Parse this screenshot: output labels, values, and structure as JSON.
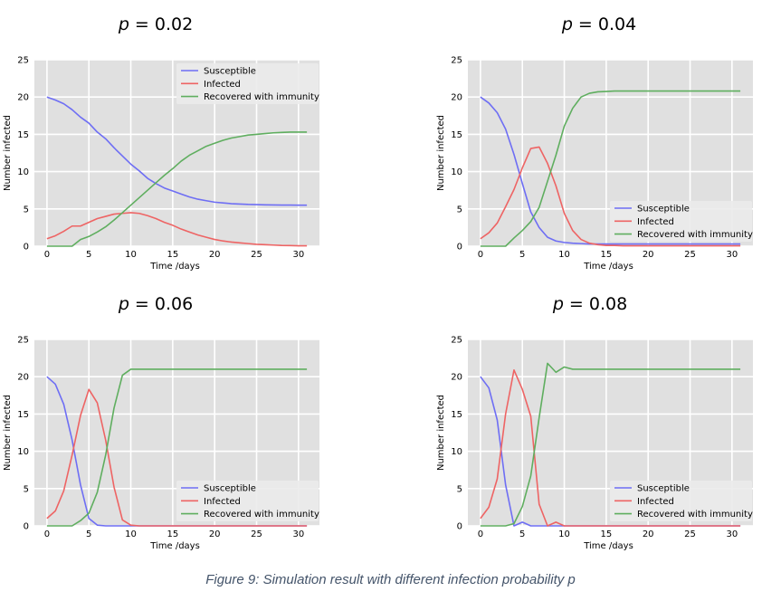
{
  "caption": "Figure 9: Simulation result with different infection probability p",
  "colors": {
    "plot_background": "#e0e0e0",
    "grid": "#ffffff",
    "susceptible": "#6e6ef4",
    "infected": "#ee6464",
    "recovered": "#5fae5f",
    "caption": "#44546a"
  },
  "chart_data": [
    {
      "type": "line",
      "title": "p = 0.02",
      "title_var": "p",
      "title_rest": " = 0.02",
      "xlabel": "Time /days",
      "ylabel": "Number infected",
      "xlim": [
        -1.5,
        32.5
      ],
      "ylim": [
        0,
        25
      ],
      "xticks": [
        0,
        5,
        10,
        15,
        20,
        25,
        30
      ],
      "yticks": [
        0,
        5,
        10,
        15,
        20,
        25
      ],
      "grid": true,
      "legend_position": "top-right",
      "x": [
        0,
        1,
        2,
        3,
        4,
        5,
        6,
        7,
        8,
        9,
        10,
        11,
        12,
        13,
        14,
        15,
        16,
        17,
        18,
        19,
        20,
        21,
        22,
        23,
        24,
        25,
        26,
        27,
        28,
        29,
        30,
        31
      ],
      "series": [
        {
          "name": "Susceptible",
          "values": [
            20,
            19.6,
            19.1,
            18.3,
            17.3,
            16.5,
            15.3,
            14.4,
            13.2,
            12.1,
            11.0,
            10.1,
            9.1,
            8.4,
            7.8,
            7.4,
            7.0,
            6.6,
            6.3,
            6.1,
            5.9,
            5.8,
            5.7,
            5.65,
            5.6,
            5.58,
            5.55,
            5.53,
            5.52,
            5.51,
            5.5,
            5.5
          ]
        },
        {
          "name": "Infected",
          "values": [
            1,
            1.4,
            2,
            2.7,
            2.7,
            3.2,
            3.7,
            4.0,
            4.3,
            4.4,
            4.5,
            4.4,
            4.1,
            3.7,
            3.2,
            2.8,
            2.3,
            1.9,
            1.5,
            1.2,
            0.9,
            0.7,
            0.55,
            0.45,
            0.35,
            0.25,
            0.2,
            0.15,
            0.1,
            0.08,
            0.05,
            0.05
          ]
        },
        {
          "name": "Recovered with immunity",
          "values": [
            0,
            0,
            0,
            0,
            0.9,
            1.3,
            1.9,
            2.6,
            3.5,
            4.5,
            5.5,
            6.5,
            7.5,
            8.5,
            9.5,
            10.4,
            11.4,
            12.2,
            12.8,
            13.4,
            13.8,
            14.2,
            14.5,
            14.7,
            14.9,
            15.0,
            15.1,
            15.2,
            15.25,
            15.3,
            15.3,
            15.3
          ]
        }
      ]
    },
    {
      "type": "line",
      "title": "p = 0.04",
      "title_var": "p",
      "title_rest": " = 0.04",
      "xlabel": "Time /days",
      "ylabel": "Number infected",
      "xlim": [
        -1.5,
        32.5
      ],
      "ylim": [
        0,
        25
      ],
      "xticks": [
        0,
        5,
        10,
        15,
        20,
        25,
        30
      ],
      "yticks": [
        0,
        5,
        10,
        15,
        20,
        25
      ],
      "grid": true,
      "legend_position": "lower-right",
      "x": [
        0,
        1,
        2,
        3,
        4,
        5,
        6,
        7,
        8,
        9,
        10,
        11,
        12,
        13,
        14,
        15,
        16,
        17,
        18,
        19,
        20,
        21,
        22,
        23,
        24,
        25,
        26,
        27,
        28,
        29,
        30,
        31
      ],
      "series": [
        {
          "name": "Susceptible",
          "values": [
            20,
            19.2,
            17.9,
            15.7,
            12.3,
            8.4,
            4.6,
            2.5,
            1.2,
            0.7,
            0.5,
            0.4,
            0.35,
            0.3,
            0.3,
            0.3,
            0.3,
            0.3,
            0.3,
            0.3,
            0.3,
            0.3,
            0.3,
            0.3,
            0.3,
            0.3,
            0.3,
            0.3,
            0.3,
            0.3,
            0.3,
            0.3
          ]
        },
        {
          "name": "Infected",
          "values": [
            1,
            1.8,
            3.1,
            5.3,
            7.6,
            10.5,
            13.1,
            13.3,
            11.1,
            8.1,
            4.4,
            2.1,
            0.9,
            0.4,
            0.2,
            0.1,
            0.1,
            0.05,
            0.05,
            0.05,
            0.05,
            0.05,
            0.05,
            0.05,
            0.05,
            0.05,
            0.05,
            0.05,
            0.05,
            0.05,
            0.05,
            0.05
          ]
        },
        {
          "name": "Recovered with immunity",
          "values": [
            0,
            0,
            0,
            0,
            1.1,
            2.1,
            3.3,
            5.2,
            8.7,
            12.2,
            16.1,
            18.5,
            20.0,
            20.5,
            20.7,
            20.75,
            20.8,
            20.8,
            20.8,
            20.8,
            20.8,
            20.8,
            20.8,
            20.8,
            20.8,
            20.8,
            20.8,
            20.8,
            20.8,
            20.8,
            20.8,
            20.8
          ]
        }
      ]
    },
    {
      "type": "line",
      "title": "p = 0.06",
      "title_var": "p",
      "title_rest": " = 0.06",
      "xlabel": "Time /days",
      "ylabel": "Number infected",
      "xlim": [
        -1.5,
        32.5
      ],
      "ylim": [
        0,
        25
      ],
      "xticks": [
        0,
        5,
        10,
        15,
        20,
        25,
        30
      ],
      "yticks": [
        0,
        5,
        10,
        15,
        20,
        25
      ],
      "grid": true,
      "legend_position": "lower-right",
      "x": [
        0,
        1,
        2,
        3,
        4,
        5,
        6,
        7,
        8,
        9,
        10,
        11,
        12,
        13,
        14,
        15,
        16,
        17,
        18,
        19,
        20,
        21,
        22,
        23,
        24,
        25,
        26,
        27,
        28,
        29,
        30,
        31
      ],
      "series": [
        {
          "name": "Susceptible",
          "values": [
            20,
            19,
            16.3,
            11.5,
            5.5,
            1.0,
            0.1,
            0,
            0,
            0,
            0,
            0,
            0,
            0,
            0,
            0,
            0,
            0,
            0,
            0,
            0,
            0,
            0,
            0,
            0,
            0,
            0,
            0,
            0,
            0,
            0,
            0
          ]
        },
        {
          "name": "Infected",
          "values": [
            1,
            2,
            4.7,
            9.5,
            14.8,
            18.3,
            16.5,
            11.5,
            5.2,
            0.8,
            0.1,
            0,
            0,
            0,
            0,
            0,
            0,
            0,
            0,
            0,
            0,
            0,
            0,
            0,
            0,
            0,
            0,
            0,
            0,
            0,
            0,
            0
          ]
        },
        {
          "name": "Recovered with immunity",
          "values": [
            0,
            0,
            0,
            0,
            0.7,
            1.7,
            4.5,
            9.5,
            15.8,
            20.2,
            21.0,
            21.0,
            21.0,
            21.0,
            21.0,
            21.0,
            21.0,
            21.0,
            21.0,
            21.0,
            21.0,
            21.0,
            21.0,
            21.0,
            21.0,
            21.0,
            21.0,
            21.0,
            21.0,
            21.0,
            21.0,
            21.0
          ]
        }
      ]
    },
    {
      "type": "line",
      "title": "p = 0.08",
      "title_var": "p",
      "title_rest": " = 0.08",
      "xlabel": "Time /days",
      "ylabel": "Number infected",
      "xlim": [
        -1.5,
        32.5
      ],
      "ylim": [
        0,
        25
      ],
      "xticks": [
        0,
        5,
        10,
        15,
        20,
        25,
        30
      ],
      "yticks": [
        0,
        5,
        10,
        15,
        20,
        25
      ],
      "grid": true,
      "legend_position": "lower-right",
      "x": [
        0,
        1,
        2,
        3,
        4,
        5,
        6,
        7,
        8,
        9,
        10,
        11,
        12,
        13,
        14,
        15,
        16,
        17,
        18,
        19,
        20,
        21,
        22,
        23,
        24,
        25,
        26,
        27,
        28,
        29,
        30,
        31
      ],
      "series": [
        {
          "name": "Susceptible",
          "values": [
            20,
            18.5,
            14.2,
            5.5,
            0,
            0.5,
            0,
            0,
            0,
            0,
            0,
            0,
            0,
            0,
            0,
            0,
            0,
            0,
            0,
            0,
            0,
            0,
            0,
            0,
            0,
            0,
            0,
            0,
            0,
            0,
            0,
            0
          ]
        },
        {
          "name": "Infected",
          "values": [
            1,
            2.5,
            6.3,
            15,
            20.9,
            18.3,
            14.7,
            2.9,
            0,
            0.5,
            0,
            0,
            0,
            0,
            0,
            0,
            0,
            0,
            0,
            0,
            0,
            0,
            0,
            0,
            0,
            0,
            0,
            0,
            0,
            0,
            0,
            0
          ]
        },
        {
          "name": "Recovered with immunity",
          "values": [
            0,
            0,
            0,
            0,
            0.3,
            2.6,
            6.7,
            14.5,
            21.8,
            20.6,
            21.3,
            21.0,
            21.0,
            21.0,
            21.0,
            21.0,
            21.0,
            21.0,
            21.0,
            21.0,
            21.0,
            21.0,
            21.0,
            21.0,
            21.0,
            21.0,
            21.0,
            21.0,
            21.0,
            21.0,
            21.0,
            21.0
          ]
        }
      ]
    }
  ]
}
